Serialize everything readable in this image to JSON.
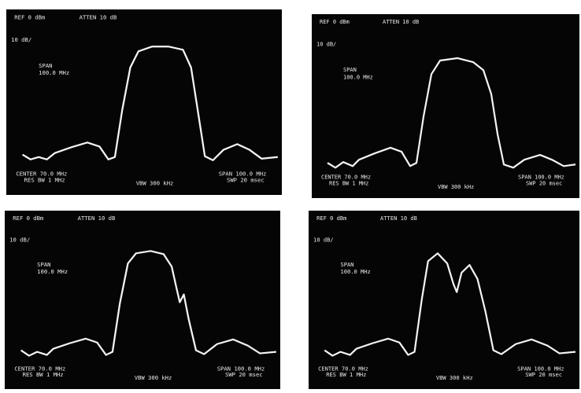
{
  "panels": [
    {
      "ref": "REF 0 dBm",
      "atten": "ATTEN 10 dB",
      "scale": "10 dB/",
      "span_title": "SPAN",
      "span_value": "100.0 MHz",
      "center": "CENTER 70.0 MHz",
      "res_bw": "RES BW 1 MHz",
      "vbw": "VBW 300 kHz",
      "span": "SPAN 100.0 MHz",
      "sweep": "SWP 20 msec"
    },
    {
      "ref": "REF 0 dBm",
      "atten": "ATTEN 10 dB",
      "scale": "10 dB/",
      "span_title": "SPAN",
      "span_value": "100.0 MHz",
      "center": "CENTER 70.0 MHz",
      "res_bw": "RES BW 1 MHz",
      "vbw": "VBW 300 kHz",
      "span": "SPAN 100.0 MHz",
      "sweep": "SWP 20 msec"
    },
    {
      "ref": "REF 0 dBm",
      "atten": "ATTEN 10 dB",
      "scale": "10 dB/",
      "span_title": "SPAN",
      "span_value": "100.0 MHz",
      "center": "CENTER 70.0 MHz",
      "res_bw": "RES BW 1 MHz",
      "vbw": "VBW 300 kHz",
      "span": "SPAN 100.0 MHz",
      "sweep": "SWP 20 msec"
    },
    {
      "ref": "REF 0 dBm",
      "atten": "ATTEN 10 dB",
      "scale": "10 dB/",
      "span_title": "SPAN",
      "span_value": "100.0 MHz",
      "center": "CENTER 70.0 MHz",
      "res_bw": "RES BW 1 MHz",
      "vbw": "VBW 300 kHz",
      "span": "SPAN 100.0 MHz",
      "sweep": "SWP 20 msec"
    }
  ]
}
